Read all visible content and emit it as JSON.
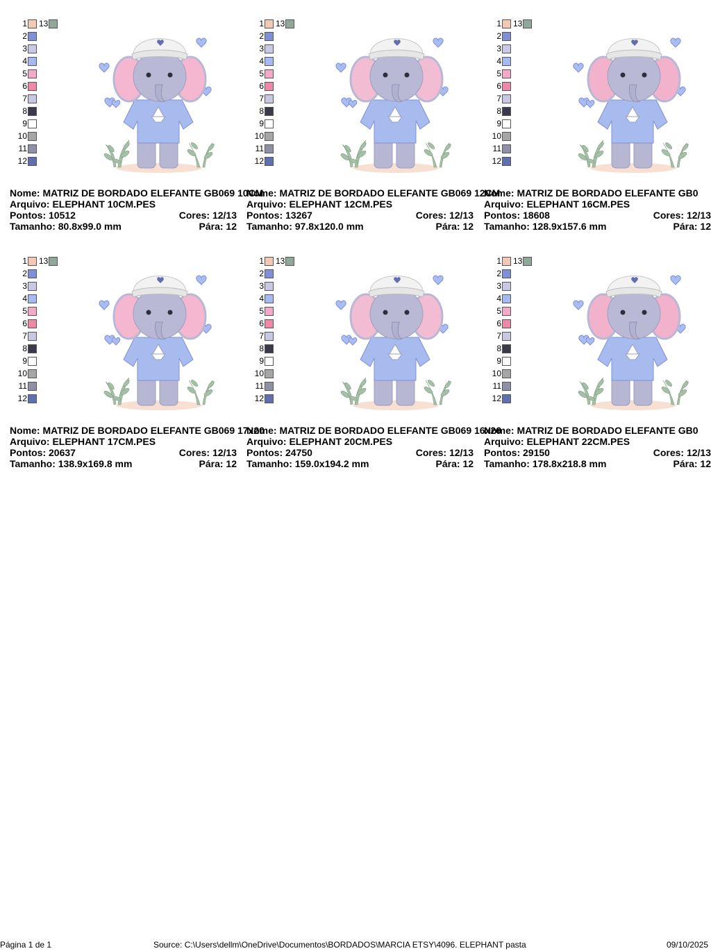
{
  "colors": {
    "c1": "#f2c9b5",
    "c2": "#7f90d6",
    "c3": "#c9c9e6",
    "c4": "#a6b9f0",
    "c5": "#f5a9c8",
    "c6": "#ee88a8",
    "c7": "#c8c8e4",
    "c8": "#3a3a4a",
    "c9": "#ffffff",
    "c10": "#a6a6a6",
    "c11": "#8f8fa6",
    "c12": "#5f6fb0",
    "c13": "#8fa89a"
  },
  "swatch_numbers": [
    "1",
    "2",
    "3",
    "4",
    "5",
    "6",
    "7",
    "8",
    "9",
    "10",
    "11",
    "12",
    "13"
  ],
  "cards": [
    {
      "nome_label": "Nome:",
      "nome": "MATRIZ DE BORDADO ELEFANTE GB069 10CM",
      "arquivo_label": "Arquivo:",
      "arquivo": "ELEPHANT 10CM.PES",
      "pontos_label": "Pontos:",
      "pontos": "10512",
      "cores_label": "Cores:",
      "cores": "12/13",
      "tamanho_label": "Tamanho:",
      "tamanho": "80.8x99.0 mm",
      "para_label": "Pára:",
      "para": "12"
    },
    {
      "nome_label": "Nome:",
      "nome": "MATRIZ DE BORDADO ELEFANTE GB069 12CM",
      "arquivo_label": "Arquivo:",
      "arquivo": "ELEPHANT 12CM.PES",
      "pontos_label": "Pontos:",
      "pontos": "13267",
      "cores_label": "Cores:",
      "cores": "12/13",
      "tamanho_label": "Tamanho:",
      "tamanho": "97.8x120.0 mm",
      "para_label": "Pára:",
      "para": "12"
    },
    {
      "nome_label": "Nome:",
      "nome": "MATRIZ DE BORDADO ELEFANTE GB0",
      "arquivo_label": "Arquivo:",
      "arquivo": "ELEPHANT 16CM.PES",
      "pontos_label": "Pontos:",
      "pontos": "18608",
      "cores_label": "Cores:",
      "cores": "12/13",
      "tamanho_label": "Tamanho:",
      "tamanho": "128.9x157.6 mm",
      "para_label": "Pára:",
      "para": "12"
    },
    {
      "nome_label": "Nome:",
      "nome": "MATRIZ DE BORDADO ELEFANTE GB069 17x20",
      "arquivo_label": "Arquivo:",
      "arquivo": "ELEPHANT 17CM.PES",
      "pontos_label": "Pontos:",
      "pontos": "20637",
      "cores_label": "Cores:",
      "cores": "12/13",
      "tamanho_label": "Tamanho:",
      "tamanho": "138.9x169.8 mm",
      "para_label": "Pára:",
      "para": "12"
    },
    {
      "nome_label": "Nome:",
      "nome": "MATRIZ DE BORDADO ELEFANTE GB069 16x26",
      "arquivo_label": "Arquivo:",
      "arquivo": "ELEPHANT 20CM.PES",
      "pontos_label": "Pontos:",
      "pontos": "24750",
      "cores_label": "Cores:",
      "cores": "12/13",
      "tamanho_label": "Tamanho:",
      "tamanho": "159.0x194.2 mm",
      "para_label": "Pára:",
      "para": "12"
    },
    {
      "nome_label": "Nome:",
      "nome": "MATRIZ DE BORDADO ELEFANTE GB0",
      "arquivo_label": "Arquivo:",
      "arquivo": "ELEPHANT 22CM.PES",
      "pontos_label": "Pontos:",
      "pontos": "29150",
      "cores_label": "Cores:",
      "cores": "12/13",
      "tamanho_label": "Tamanho:",
      "tamanho": "178.8x218.8 mm",
      "para_label": "Pára:",
      "para": "12"
    }
  ],
  "footer": {
    "page": "Página 1 de 1",
    "source": "Source: C:\\Users\\dellm\\OneDrive\\Documentos\\BORDADOS\\MARCIA ETSY\\4096. ELEPHANT pasta",
    "date": "09/10/2025"
  }
}
